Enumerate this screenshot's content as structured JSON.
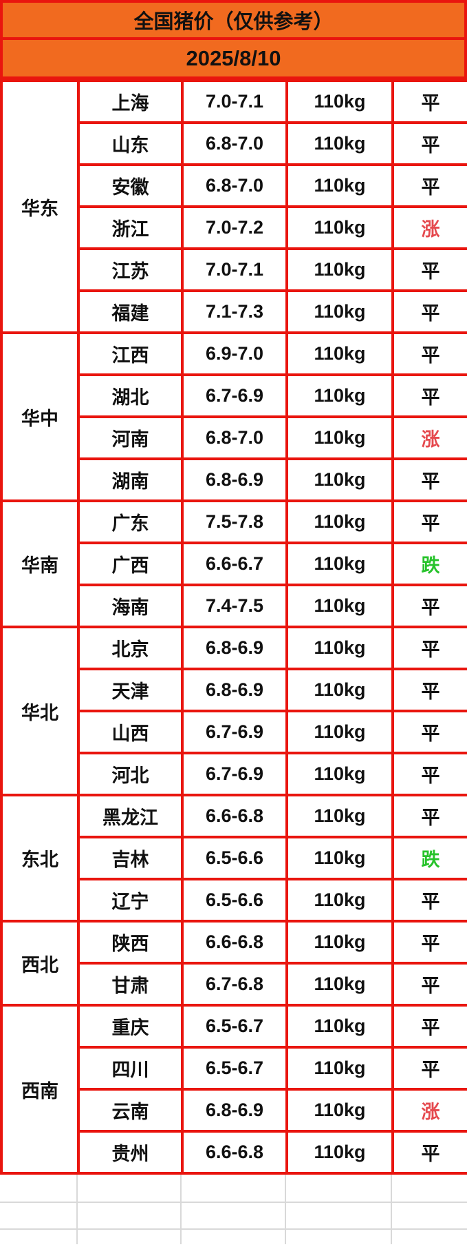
{
  "header": {
    "title": "全国猪价（仅供参考）",
    "date": "2025/8/10"
  },
  "colors": {
    "header_bg": "#f16a1f",
    "border_red": "#e9150e",
    "grid_gray": "#d9d9d9",
    "status_flat": "#111111",
    "status_up": "#e5494e",
    "status_down": "#27c32b"
  },
  "table": {
    "status_colors": {
      "平": "#111111",
      "涨": "#e5494e",
      "跌": "#27c32b"
    },
    "regions": [
      {
        "name": "华东",
        "rows": [
          {
            "province": "上海",
            "price": "7.0-7.1",
            "weight": "110kg",
            "status": "平"
          },
          {
            "province": "山东",
            "price": "6.8-7.0",
            "weight": "110kg",
            "status": "平"
          },
          {
            "province": "安徽",
            "price": "6.8-7.0",
            "weight": "110kg",
            "status": "平"
          },
          {
            "province": "浙江",
            "price": "7.0-7.2",
            "weight": "110kg",
            "status": "涨"
          },
          {
            "province": "江苏",
            "price": "7.0-7.1",
            "weight": "110kg",
            "status": "平"
          },
          {
            "province": "福建",
            "price": "7.1-7.3",
            "weight": "110kg",
            "status": "平"
          }
        ]
      },
      {
        "name": "华中",
        "rows": [
          {
            "province": "江西",
            "price": "6.9-7.0",
            "weight": "110kg",
            "status": "平"
          },
          {
            "province": "湖北",
            "price": "6.7-6.9",
            "weight": "110kg",
            "status": "平"
          },
          {
            "province": "河南",
            "price": "6.8-7.0",
            "weight": "110kg",
            "status": "涨"
          },
          {
            "province": "湖南",
            "price": "6.8-6.9",
            "weight": "110kg",
            "status": "平"
          }
        ]
      },
      {
        "name": "华南",
        "rows": [
          {
            "province": "广东",
            "price": "7.5-7.8",
            "weight": "110kg",
            "status": "平"
          },
          {
            "province": "广西",
            "price": "6.6-6.7",
            "weight": "110kg",
            "status": "跌"
          },
          {
            "province": "海南",
            "price": "7.4-7.5",
            "weight": "110kg",
            "status": "平"
          }
        ]
      },
      {
        "name": "华北",
        "rows": [
          {
            "province": "北京",
            "price": "6.8-6.9",
            "weight": "110kg",
            "status": "平"
          },
          {
            "province": "天津",
            "price": "6.8-6.9",
            "weight": "110kg",
            "status": "平"
          },
          {
            "province": "山西",
            "price": "6.7-6.9",
            "weight": "110kg",
            "status": "平"
          },
          {
            "province": "河北",
            "price": "6.7-6.9",
            "weight": "110kg",
            "status": "平"
          }
        ]
      },
      {
        "name": "东北",
        "rows": [
          {
            "province": "黑龙江",
            "price": "6.6-6.8",
            "weight": "110kg",
            "status": "平"
          },
          {
            "province": "吉林",
            "price": "6.5-6.6",
            "weight": "110kg",
            "status": "跌"
          },
          {
            "province": "辽宁",
            "price": "6.5-6.6",
            "weight": "110kg",
            "status": "平"
          }
        ]
      },
      {
        "name": "西北",
        "rows": [
          {
            "province": "陕西",
            "price": "6.6-6.8",
            "weight": "110kg",
            "status": "平"
          },
          {
            "province": "甘肃",
            "price": "6.7-6.8",
            "weight": "110kg",
            "status": "平"
          }
        ]
      },
      {
        "name": "西南",
        "rows": [
          {
            "province": "重庆",
            "price": "6.5-6.7",
            "weight": "110kg",
            "status": "平"
          },
          {
            "province": "四川",
            "price": "6.5-6.7",
            "weight": "110kg",
            "status": "平"
          },
          {
            "province": "云南",
            "price": "6.8-6.9",
            "weight": "110kg",
            "status": "涨"
          },
          {
            "province": "贵州",
            "price": "6.6-6.8",
            "weight": "110kg",
            "status": "平"
          }
        ]
      }
    ]
  }
}
